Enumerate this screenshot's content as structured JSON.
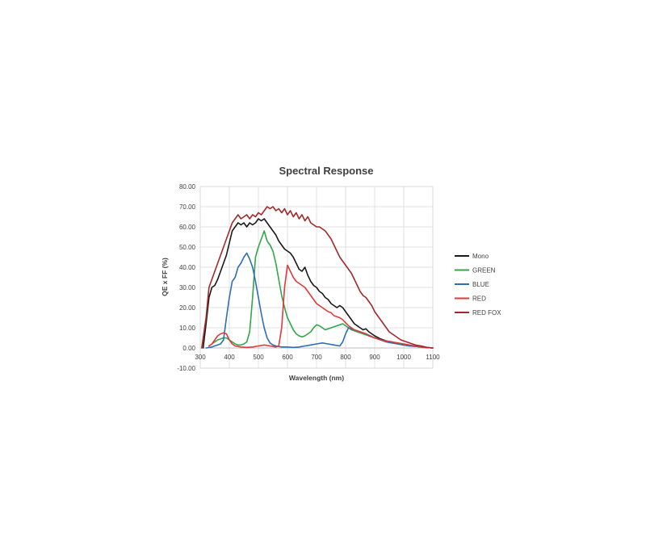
{
  "chart_data": {
    "type": "line",
    "title": "Spectral Response",
    "xlabel": "Wavelength (nm)",
    "ylabel": "QE x FF (%)",
    "xlim": [
      300,
      1100
    ],
    "ylim": [
      -10,
      80
    ],
    "xticks": [
      300,
      400,
      500,
      600,
      700,
      800,
      900,
      1000,
      1100
    ],
    "xtick_labels": [
      "300",
      "400",
      "500",
      "600",
      "700",
      "800",
      "900",
      "1000",
      "1100"
    ],
    "yticks": [
      -10,
      0,
      10,
      20,
      30,
      40,
      50,
      60,
      70,
      80
    ],
    "ytick_labels": [
      "-10.00",
      "0.00",
      "10.00",
      "20.00",
      "30.00",
      "40.00",
      "50.00",
      "60.00",
      "70.00",
      "80.00"
    ],
    "grid": true,
    "legend_position": "right",
    "series": [
      {
        "name": "Mono",
        "color": "#1a1a1a",
        "points": [
          [
            310,
            0
          ],
          [
            320,
            12
          ],
          [
            330,
            25
          ],
          [
            340,
            30
          ],
          [
            350,
            31
          ],
          [
            360,
            34
          ],
          [
            370,
            38
          ],
          [
            380,
            42
          ],
          [
            390,
            46
          ],
          [
            400,
            52
          ],
          [
            410,
            58
          ],
          [
            420,
            60
          ],
          [
            430,
            62
          ],
          [
            440,
            61
          ],
          [
            450,
            62
          ],
          [
            460,
            60
          ],
          [
            470,
            62
          ],
          [
            480,
            61
          ],
          [
            490,
            62
          ],
          [
            500,
            64
          ],
          [
            510,
            63
          ],
          [
            520,
            64
          ],
          [
            530,
            62
          ],
          [
            540,
            60
          ],
          [
            550,
            58
          ],
          [
            560,
            56
          ],
          [
            570,
            53
          ],
          [
            580,
            51
          ],
          [
            590,
            49
          ],
          [
            600,
            48
          ],
          [
            610,
            47
          ],
          [
            620,
            45
          ],
          [
            630,
            42
          ],
          [
            640,
            39
          ],
          [
            650,
            38
          ],
          [
            660,
            40
          ],
          [
            670,
            36
          ],
          [
            680,
            33
          ],
          [
            690,
            31
          ],
          [
            700,
            30
          ],
          [
            710,
            28
          ],
          [
            720,
            27
          ],
          [
            730,
            25
          ],
          [
            740,
            24
          ],
          [
            750,
            22
          ],
          [
            760,
            21
          ],
          [
            770,
            20
          ],
          [
            780,
            21
          ],
          [
            790,
            20
          ],
          [
            800,
            18
          ],
          [
            810,
            16
          ],
          [
            820,
            14
          ],
          [
            830,
            12
          ],
          [
            840,
            11
          ],
          [
            850,
            10
          ],
          [
            860,
            9
          ],
          [
            870,
            9.5
          ],
          [
            880,
            8
          ],
          [
            900,
            6
          ],
          [
            920,
            4.5
          ],
          [
            940,
            3.5
          ],
          [
            960,
            3
          ],
          [
            980,
            2
          ],
          [
            1000,
            1.5
          ],
          [
            1020,
            1
          ],
          [
            1040,
            0.8
          ],
          [
            1060,
            0.5
          ],
          [
            1080,
            0.2
          ],
          [
            1100,
            0
          ]
        ]
      },
      {
        "name": "GREEN",
        "color": "#2ea84a",
        "points": [
          [
            330,
            1
          ],
          [
            340,
            2
          ],
          [
            350,
            3
          ],
          [
            360,
            4
          ],
          [
            370,
            4.5
          ],
          [
            380,
            5
          ],
          [
            390,
            5
          ],
          [
            400,
            4
          ],
          [
            410,
            3
          ],
          [
            420,
            2
          ],
          [
            430,
            1.5
          ],
          [
            440,
            1.5
          ],
          [
            450,
            2
          ],
          [
            460,
            3
          ],
          [
            470,
            8
          ],
          [
            480,
            25
          ],
          [
            490,
            45
          ],
          [
            500,
            50
          ],
          [
            510,
            54
          ],
          [
            520,
            58
          ],
          [
            530,
            53
          ],
          [
            540,
            51
          ],
          [
            550,
            48
          ],
          [
            560,
            42
          ],
          [
            570,
            34
          ],
          [
            580,
            26
          ],
          [
            590,
            20
          ],
          [
            600,
            15
          ],
          [
            610,
            12
          ],
          [
            620,
            9
          ],
          [
            630,
            7
          ],
          [
            640,
            6
          ],
          [
            650,
            5.5
          ],
          [
            660,
            6
          ],
          [
            670,
            7
          ],
          [
            680,
            8
          ],
          [
            690,
            10
          ],
          [
            700,
            11.5
          ],
          [
            710,
            11
          ],
          [
            720,
            10
          ],
          [
            730,
            9
          ],
          [
            740,
            9.5
          ],
          [
            750,
            10
          ],
          [
            760,
            10.5
          ],
          [
            770,
            11
          ],
          [
            780,
            11.5
          ],
          [
            790,
            12
          ],
          [
            800,
            11
          ],
          [
            810,
            10
          ],
          [
            820,
            9
          ],
          [
            830,
            8.5
          ],
          [
            840,
            8
          ],
          [
            850,
            7.5
          ],
          [
            860,
            7
          ],
          [
            870,
            6.5
          ],
          [
            880,
            6
          ],
          [
            900,
            5
          ],
          [
            920,
            4
          ],
          [
            940,
            3
          ],
          [
            960,
            2.5
          ],
          [
            980,
            2
          ],
          [
            1000,
            1.5
          ],
          [
            1020,
            1
          ],
          [
            1040,
            0.8
          ],
          [
            1060,
            0.5
          ],
          [
            1080,
            0.2
          ],
          [
            1100,
            0
          ]
        ]
      },
      {
        "name": "BLUE",
        "color": "#2f6eb5",
        "points": [
          [
            320,
            0
          ],
          [
            340,
            0.5
          ],
          [
            350,
            1
          ],
          [
            360,
            1.5
          ],
          [
            370,
            2
          ],
          [
            380,
            4
          ],
          [
            390,
            15
          ],
          [
            400,
            25
          ],
          [
            410,
            33
          ],
          [
            420,
            35
          ],
          [
            430,
            40
          ],
          [
            440,
            42
          ],
          [
            450,
            45
          ],
          [
            460,
            47
          ],
          [
            470,
            44
          ],
          [
            480,
            40
          ],
          [
            490,
            33
          ],
          [
            500,
            25
          ],
          [
            510,
            17
          ],
          [
            520,
            10
          ],
          [
            530,
            5
          ],
          [
            540,
            2.5
          ],
          [
            550,
            1.5
          ],
          [
            560,
            1
          ],
          [
            580,
            0.5
          ],
          [
            600,
            0.5
          ],
          [
            620,
            0.3
          ],
          [
            640,
            0.5
          ],
          [
            660,
            1
          ],
          [
            680,
            1.5
          ],
          [
            700,
            2
          ],
          [
            720,
            2.5
          ],
          [
            740,
            2
          ],
          [
            760,
            1.5
          ],
          [
            780,
            1
          ],
          [
            790,
            3
          ],
          [
            800,
            7
          ],
          [
            810,
            10
          ],
          [
            820,
            9.5
          ],
          [
            830,
            9
          ],
          [
            840,
            8.5
          ],
          [
            850,
            8
          ],
          [
            870,
            7
          ],
          [
            900,
            5
          ],
          [
            920,
            4
          ],
          [
            940,
            3
          ],
          [
            960,
            2.5
          ],
          [
            980,
            2
          ],
          [
            1000,
            1.5
          ],
          [
            1020,
            1
          ],
          [
            1040,
            0.8
          ],
          [
            1060,
            0.5
          ],
          [
            1080,
            0.2
          ],
          [
            1100,
            0
          ]
        ]
      },
      {
        "name": "RED",
        "color": "#e03a3a",
        "points": [
          [
            330,
            1
          ],
          [
            340,
            2
          ],
          [
            350,
            4
          ],
          [
            360,
            6
          ],
          [
            370,
            7
          ],
          [
            380,
            7.5
          ],
          [
            390,
            7
          ],
          [
            400,
            4
          ],
          [
            410,
            2
          ],
          [
            420,
            1
          ],
          [
            440,
            0.5
          ],
          [
            460,
            0.3
          ],
          [
            480,
            0.5
          ],
          [
            500,
            1
          ],
          [
            520,
            1.5
          ],
          [
            540,
            1
          ],
          [
            560,
            0.5
          ],
          [
            570,
            1
          ],
          [
            580,
            10
          ],
          [
            590,
            30
          ],
          [
            600,
            41
          ],
          [
            610,
            38
          ],
          [
            620,
            35
          ],
          [
            630,
            33
          ],
          [
            640,
            32
          ],
          [
            650,
            31
          ],
          [
            660,
            30
          ],
          [
            670,
            28
          ],
          [
            680,
            26
          ],
          [
            690,
            24
          ],
          [
            700,
            22
          ],
          [
            710,
            21
          ],
          [
            720,
            20
          ],
          [
            730,
            19
          ],
          [
            740,
            18
          ],
          [
            750,
            17.5
          ],
          [
            760,
            16
          ],
          [
            770,
            15.5
          ],
          [
            780,
            15
          ],
          [
            790,
            14
          ],
          [
            800,
            12.5
          ],
          [
            810,
            11
          ],
          [
            820,
            10
          ],
          [
            830,
            9
          ],
          [
            840,
            8.5
          ],
          [
            850,
            8
          ],
          [
            860,
            7.5
          ],
          [
            870,
            7
          ],
          [
            880,
            6
          ],
          [
            900,
            5
          ],
          [
            920,
            4
          ],
          [
            940,
            3.5
          ],
          [
            960,
            3
          ],
          [
            980,
            2.5
          ],
          [
            1000,
            2
          ],
          [
            1020,
            1.5
          ],
          [
            1040,
            1
          ],
          [
            1060,
            0.5
          ],
          [
            1080,
            0.2
          ],
          [
            1100,
            0
          ]
        ]
      },
      {
        "name": "RED FOX",
        "color": "#a32a2a",
        "points": [
          [
            305,
            0
          ],
          [
            320,
            15
          ],
          [
            330,
            30
          ],
          [
            340,
            34
          ],
          [
            350,
            38
          ],
          [
            360,
            42
          ],
          [
            370,
            46
          ],
          [
            380,
            50
          ],
          [
            390,
            54
          ],
          [
            400,
            58
          ],
          [
            410,
            62
          ],
          [
            420,
            64
          ],
          [
            430,
            66
          ],
          [
            440,
            64
          ],
          [
            450,
            65
          ],
          [
            460,
            66
          ],
          [
            470,
            64
          ],
          [
            480,
            66
          ],
          [
            490,
            65
          ],
          [
            500,
            67
          ],
          [
            510,
            66
          ],
          [
            520,
            68
          ],
          [
            530,
            70
          ],
          [
            540,
            69
          ],
          [
            550,
            70
          ],
          [
            560,
            68
          ],
          [
            570,
            69
          ],
          [
            580,
            67
          ],
          [
            590,
            69
          ],
          [
            600,
            66
          ],
          [
            610,
            68
          ],
          [
            620,
            65
          ],
          [
            630,
            67
          ],
          [
            640,
            64
          ],
          [
            650,
            66
          ],
          [
            660,
            63
          ],
          [
            670,
            65
          ],
          [
            680,
            62
          ],
          [
            690,
            61
          ],
          [
            700,
            60
          ],
          [
            710,
            60
          ],
          [
            720,
            59
          ],
          [
            730,
            58
          ],
          [
            740,
            56
          ],
          [
            750,
            54
          ],
          [
            760,
            51
          ],
          [
            770,
            48
          ],
          [
            780,
            45
          ],
          [
            790,
            43
          ],
          [
            800,
            41
          ],
          [
            810,
            39
          ],
          [
            820,
            37
          ],
          [
            830,
            34
          ],
          [
            840,
            31
          ],
          [
            850,
            28
          ],
          [
            860,
            26
          ],
          [
            870,
            25
          ],
          [
            880,
            23
          ],
          [
            890,
            21
          ],
          [
            900,
            18
          ],
          [
            910,
            16
          ],
          [
            920,
            14
          ],
          [
            930,
            12
          ],
          [
            940,
            10
          ],
          [
            950,
            8
          ],
          [
            960,
            7
          ],
          [
            970,
            6
          ],
          [
            980,
            5
          ],
          [
            990,
            4
          ],
          [
            1000,
            3.5
          ],
          [
            1020,
            2.5
          ],
          [
            1040,
            1.5
          ],
          [
            1060,
            1
          ],
          [
            1080,
            0.3
          ],
          [
            1100,
            0
          ]
        ]
      }
    ]
  }
}
